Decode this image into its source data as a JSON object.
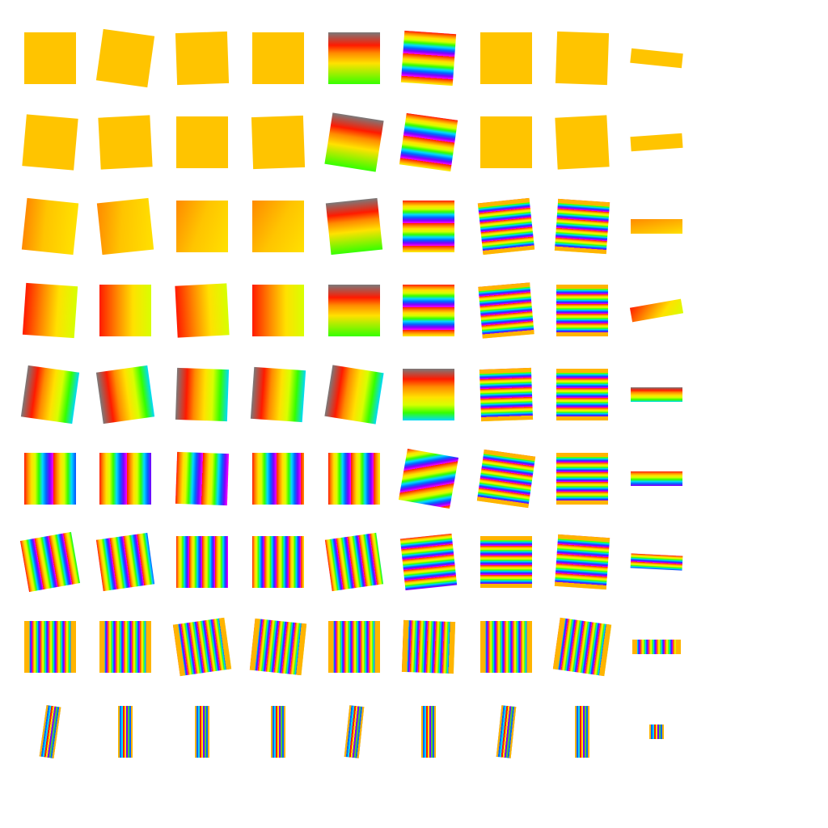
{
  "background_color": "#ffffff",
  "grid": {
    "rows": 9,
    "columns": 9
  },
  "palette": {
    "base": "#ffc400",
    "orange": "#ff8a00",
    "yellow": "#ffe100",
    "lime": "#d7ff00",
    "red": "#ff1a00",
    "green": "#35ff00",
    "gray": "#7a7a7a",
    "cyan": "#00d9ff",
    "blue": "#0066ff",
    "violet": "#7b00ff",
    "magenta": "#ff00ff",
    "band_green": "#4ccf3a",
    "band_orange": "#ffb400"
  },
  "row_patterns": [
    "solid",
    "solid",
    "solid-warm",
    "warm-gradient",
    "rainbow-soft",
    "rainbow-dense",
    "rainbow-denser",
    "rainbow-bands",
    "thin-stripes"
  ]
}
